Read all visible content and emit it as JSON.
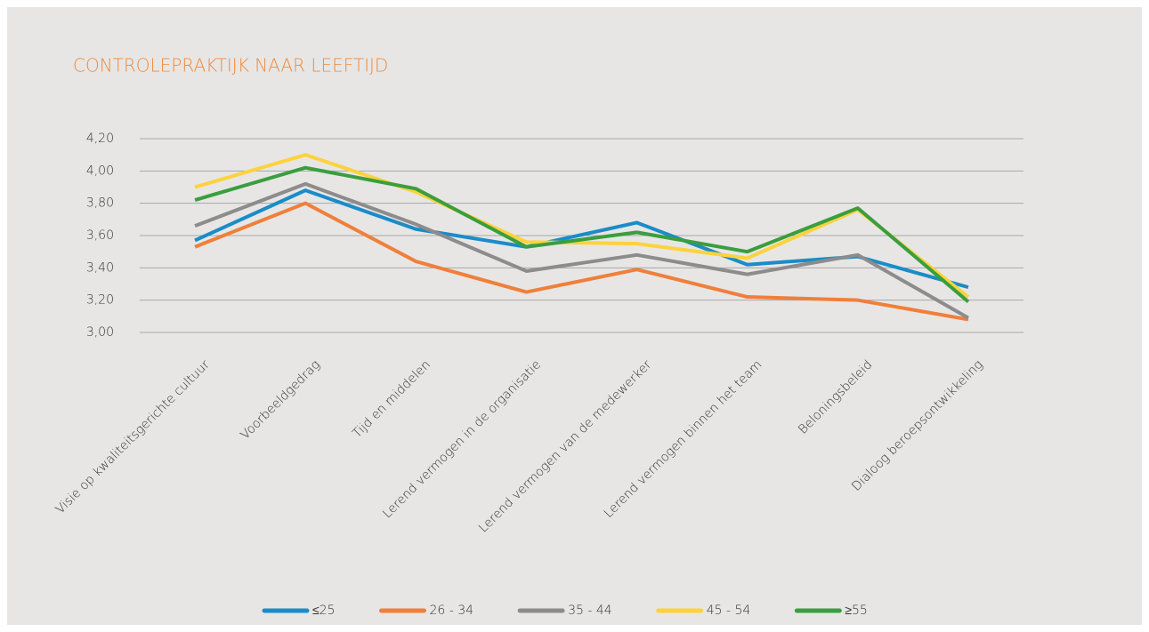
{
  "chart_data": {
    "type": "line",
    "title": "CONTROLEPRAKTIJK NAAR LEEFTIJD",
    "categories": [
      "Visie op kwaliteitsgerichte cultuur",
      "Voorbeeldgedrag",
      "Tijd en middelen",
      "Lerend vermogen in de organisatie",
      "Lerend vermogen van de medewerker",
      "Lerend vermogen binnen het team",
      "Beloningsbeleid",
      "Dialoog beroepsontwikkeling"
    ],
    "series": [
      {
        "name": "≤25",
        "color": "#1a8cc8",
        "values": [
          3.57,
          3.88,
          3.64,
          3.53,
          3.68,
          3.42,
          3.47,
          3.28
        ]
      },
      {
        "name": "26 - 34",
        "color": "#f07f3a",
        "values": [
          3.53,
          3.8,
          3.44,
          3.25,
          3.39,
          3.22,
          3.2,
          3.08
        ]
      },
      {
        "name": "35 - 44",
        "color": "#8c8c8c",
        "values": [
          3.66,
          3.92,
          3.67,
          3.38,
          3.48,
          3.36,
          3.48,
          3.09
        ]
      },
      {
        "name": "45 - 54",
        "color": "#fdd23c",
        "values": [
          3.9,
          4.1,
          3.87,
          3.56,
          3.55,
          3.46,
          3.76,
          3.22
        ]
      },
      {
        "name": "≥55",
        "color": "#3a9e3e",
        "values": [
          3.82,
          4.02,
          3.89,
          3.53,
          3.62,
          3.5,
          3.77,
          3.19
        ]
      }
    ],
    "ylim": [
      3.0,
      4.2
    ],
    "yticks": [
      {
        "value": 3.0,
        "label": "3,00"
      },
      {
        "value": 3.2,
        "label": "3,20"
      },
      {
        "value": 3.4,
        "label": "3,40"
      },
      {
        "value": 3.6,
        "label": "3,60"
      },
      {
        "value": 3.8,
        "label": "3,80"
      },
      {
        "value": 4.0,
        "label": "4,00"
      },
      {
        "value": 4.2,
        "label": "4,20"
      }
    ],
    "grid": true,
    "legend": "bottom"
  }
}
